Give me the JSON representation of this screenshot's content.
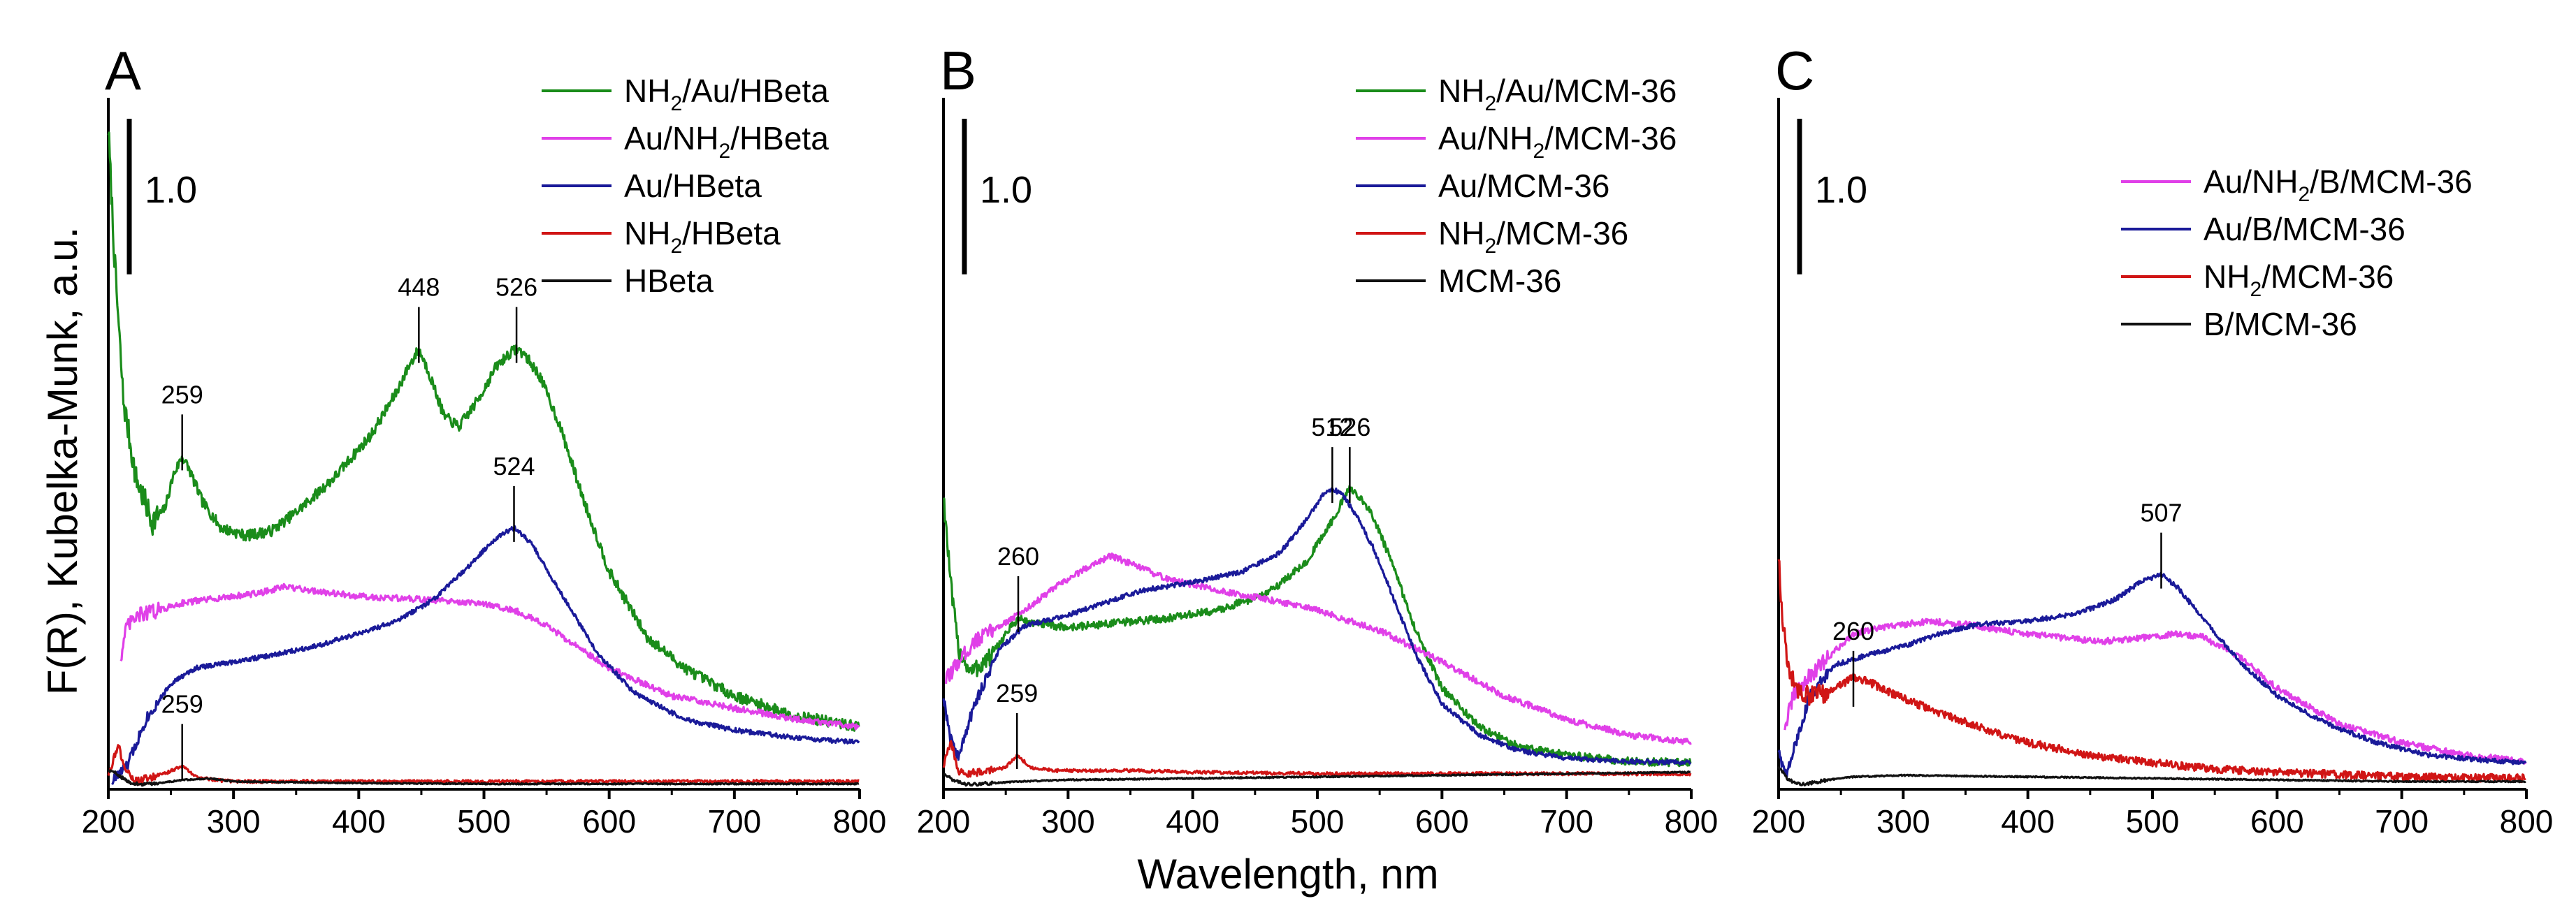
{
  "figure": {
    "xlabel": "Wavelength, nm",
    "ylabel": "F(R), Kubelka-Munk, a.u."
  },
  "colors": {
    "green": "#1a8c1a",
    "magenta": "#e040e8",
    "navy": "#1a1a99",
    "red": "#d01515",
    "black": "#111111"
  },
  "chart_data": [
    {
      "type": "line",
      "panel_label": "A",
      "xlim": [
        200,
        800
      ],
      "xticks": [
        200,
        300,
        400,
        500,
        600,
        700,
        800
      ],
      "ylim": [
        0,
        4.4
      ],
      "scale_bar": {
        "label": "1.0",
        "value": 1.0
      },
      "legend": [
        {
          "pre": "NH",
          "sub": "2",
          "post": "/Au/HBeta",
          "series": 0
        },
        {
          "pre": "Au/NH",
          "sub": "2",
          "post": "/HBeta",
          "series": 1
        },
        {
          "pre": "Au/HBeta",
          "sub": "",
          "post": "",
          "series": 2
        },
        {
          "pre": "NH",
          "sub": "2",
          "post": "/HBeta",
          "series": 3
        },
        {
          "pre": "HBeta",
          "sub": "",
          "post": "",
          "series": 4
        }
      ],
      "series": [
        {
          "color": "green",
          "noise": 0.035,
          "x": [
            200,
            205,
            212,
            222,
            235,
            245,
            252,
            259,
            265,
            275,
            290,
            310,
            330,
            350,
            380,
            410,
            430,
            440,
            448,
            456,
            468,
            480,
            495,
            510,
            520,
            526,
            532,
            545,
            560,
            580,
            600,
            630,
            660,
            700,
            750,
            800
          ],
          "y": [
            4.25,
            3.4,
            2.5,
            2.0,
            1.72,
            1.8,
            2.02,
            2.14,
            2.05,
            1.85,
            1.68,
            1.63,
            1.66,
            1.78,
            2.0,
            2.28,
            2.55,
            2.72,
            2.83,
            2.68,
            2.4,
            2.33,
            2.5,
            2.72,
            2.8,
            2.83,
            2.8,
            2.65,
            2.35,
            1.85,
            1.4,
            0.98,
            0.78,
            0.6,
            0.47,
            0.4
          ]
        },
        {
          "color": "magenta",
          "noise": 0.02,
          "x": [
            210,
            215,
            225,
            240,
            260,
            290,
            320,
            340,
            360,
            380,
            400,
            450,
            500,
            525,
            550,
            600,
            650,
            700,
            750,
            800
          ],
          "y": [
            0.85,
            1.05,
            1.12,
            1.15,
            1.2,
            1.23,
            1.26,
            1.3,
            1.28,
            1.26,
            1.24,
            1.22,
            1.19,
            1.15,
            1.05,
            0.78,
            0.6,
            0.52,
            0.45,
            0.4
          ]
        },
        {
          "color": "navy",
          "noise": 0.015,
          "x": [
            203,
            215,
            230,
            250,
            270,
            300,
            330,
            370,
            400,
            430,
            460,
            490,
            510,
            524,
            538,
            560,
            590,
            620,
            660,
            700,
            750,
            800
          ],
          "y": [
            0.05,
            0.15,
            0.45,
            0.68,
            0.78,
            0.82,
            0.86,
            0.93,
            1.0,
            1.08,
            1.22,
            1.45,
            1.62,
            1.68,
            1.58,
            1.28,
            0.88,
            0.62,
            0.45,
            0.38,
            0.33,
            0.3
          ]
        },
        {
          "color": "red",
          "noise": 0.01,
          "x": [
            200,
            208,
            214,
            222,
            232,
            245,
            259,
            270,
            285,
            300,
            400,
            500,
            600,
            700,
            800
          ],
          "y": [
            0.1,
            0.28,
            0.12,
            0.05,
            0.07,
            0.1,
            0.15,
            0.08,
            0.06,
            0.05,
            0.05,
            0.05,
            0.05,
            0.05,
            0.05
          ]
        },
        {
          "color": "black",
          "noise": 0.004,
          "x": [
            200,
            207,
            215,
            225,
            240,
            260,
            280,
            300,
            400,
            500,
            600,
            700,
            800
          ],
          "y": [
            0.12,
            0.1,
            0.05,
            0.03,
            0.04,
            0.06,
            0.07,
            0.05,
            0.04,
            0.035,
            0.035,
            0.035,
            0.035
          ]
        }
      ],
      "annotations": [
        {
          "label": "448",
          "x": 448,
          "y": 2.83
        },
        {
          "label": "526",
          "x": 526,
          "y": 2.83
        },
        {
          "label": "259",
          "x": 259,
          "y": 2.14
        },
        {
          "label": "524",
          "x": 524,
          "y": 1.68
        },
        {
          "label": "259",
          "x": 259,
          "y": 0.15
        }
      ]
    },
    {
      "type": "line",
      "panel_label": "B",
      "xlim": [
        200,
        800
      ],
      "xticks": [
        200,
        300,
        400,
        500,
        600,
        700,
        800
      ],
      "ylim": [
        0,
        4.4
      ],
      "scale_bar": {
        "label": "1.0",
        "value": 1.0
      },
      "legend": [
        {
          "pre": "NH",
          "sub": "2",
          "post": "/Au/MCM-36",
          "series": 0
        },
        {
          "pre": "Au/NH",
          "sub": "2",
          "post": "/MCM-36",
          "series": 1
        },
        {
          "pre": "Au/MCM-36",
          "sub": "",
          "post": "",
          "series": 2
        },
        {
          "pre": "NH",
          "sub": "2",
          "post": "/MCM-36",
          "series": 3
        },
        {
          "pre": "MCM-36",
          "sub": "",
          "post": "",
          "series": 4
        }
      ],
      "series": [
        {
          "color": "green",
          "noise": 0.025,
          "x": [
            200,
            206,
            212,
            222,
            238,
            250,
            260,
            270,
            300,
            340,
            380,
            420,
            460,
            490,
            510,
            520,
            526,
            532,
            545,
            560,
            580,
            600,
            630,
            660,
            700,
            750,
            800
          ],
          "y": [
            1.9,
            1.3,
            0.9,
            0.75,
            0.85,
            1.0,
            1.1,
            1.07,
            1.04,
            1.07,
            1.1,
            1.15,
            1.26,
            1.45,
            1.7,
            1.85,
            1.93,
            1.9,
            1.75,
            1.45,
            1.0,
            0.65,
            0.4,
            0.28,
            0.22,
            0.18,
            0.17
          ]
        },
        {
          "color": "magenta",
          "noise": 0.02,
          "x": [
            202,
            210,
            225,
            245,
            265,
            290,
            320,
            335,
            350,
            380,
            420,
            460,
            500,
            550,
            600,
            650,
            700,
            750,
            800
          ],
          "y": [
            0.7,
            0.8,
            0.95,
            1.05,
            1.15,
            1.3,
            1.45,
            1.5,
            1.45,
            1.35,
            1.28,
            1.22,
            1.15,
            1.02,
            0.82,
            0.6,
            0.45,
            0.35,
            0.3
          ]
        },
        {
          "color": "navy",
          "noise": 0.015,
          "x": [
            200,
            205,
            212,
            225,
            245,
            265,
            280,
            300,
            330,
            360,
            400,
            440,
            470,
            490,
            505,
            512,
            520,
            532,
            545,
            560,
            580,
            600,
            630,
            660,
            700,
            750,
            800
          ],
          "y": [
            0.6,
            0.35,
            0.2,
            0.55,
            0.9,
            1.05,
            1.08,
            1.12,
            1.2,
            1.28,
            1.33,
            1.4,
            1.52,
            1.72,
            1.9,
            1.93,
            1.9,
            1.75,
            1.55,
            1.25,
            0.85,
            0.55,
            0.35,
            0.25,
            0.2,
            0.18,
            0.17
          ]
        },
        {
          "color": "red",
          "noise": 0.01,
          "x": [
            200,
            206,
            212,
            220,
            235,
            250,
            259,
            270,
            290,
            350,
            400,
            500,
            600,
            700,
            800
          ],
          "y": [
            0.15,
            0.3,
            0.12,
            0.1,
            0.12,
            0.14,
            0.22,
            0.14,
            0.12,
            0.12,
            0.11,
            0.1,
            0.1,
            0.1,
            0.1
          ]
        },
        {
          "color": "black",
          "noise": 0.004,
          "x": [
            200,
            210,
            220,
            240,
            260,
            300,
            400,
            500,
            600,
            700,
            800
          ],
          "y": [
            0.1,
            0.05,
            0.03,
            0.04,
            0.05,
            0.06,
            0.07,
            0.08,
            0.09,
            0.1,
            0.11
          ]
        }
      ],
      "annotations": [
        {
          "label": "512",
          "x": 512,
          "y": 1.93
        },
        {
          "label": "526",
          "x": 526,
          "y": 1.93
        },
        {
          "label": "260",
          "x": 260,
          "y": 1.1
        },
        {
          "label": "259",
          "x": 259,
          "y": 0.22
        }
      ]
    },
    {
      "type": "line",
      "panel_label": "C",
      "xlim": [
        200,
        800
      ],
      "xticks": [
        200,
        300,
        400,
        500,
        600,
        700,
        800
      ],
      "ylim": [
        0,
        4.4
      ],
      "scale_bar": {
        "label": "1.0",
        "value": 1.0
      },
      "legend": [
        {
          "pre": "Au/NH",
          "sub": "2",
          "post": "/B/MCM-36",
          "series": 0
        },
        {
          "pre": "Au/B/MCM-36",
          "sub": "",
          "post": "",
          "series": 1
        },
        {
          "pre": "NH",
          "sub": "2",
          "post": "/MCM-36",
          "series": 2
        },
        {
          "pre": "B/MCM-36",
          "sub": "",
          "post": "",
          "series": 3
        }
      ],
      "series": [
        {
          "color": "magenta",
          "noise": 0.02,
          "x": [
            205,
            212,
            222,
            240,
            260,
            290,
            320,
            350,
            380,
            420,
            460,
            500,
            520,
            540,
            570,
            600,
            650,
            700,
            750,
            800
          ],
          "y": [
            0.4,
            0.6,
            0.7,
            0.85,
            1.0,
            1.05,
            1.08,
            1.06,
            1.02,
            0.98,
            0.95,
            0.98,
            1.0,
            0.98,
            0.85,
            0.65,
            0.42,
            0.3,
            0.22,
            0.18
          ]
        },
        {
          "color": "navy",
          "noise": 0.015,
          "x": [
            200,
            206,
            214,
            225,
            245,
            270,
            300,
            330,
            360,
            400,
            440,
            470,
            490,
            507,
            520,
            540,
            570,
            600,
            640,
            680,
            720,
            760,
            800
          ],
          "y": [
            0.25,
            0.08,
            0.3,
            0.6,
            0.8,
            0.86,
            0.92,
            1.0,
            1.06,
            1.08,
            1.13,
            1.22,
            1.33,
            1.38,
            1.3,
            1.1,
            0.82,
            0.6,
            0.42,
            0.3,
            0.22,
            0.19,
            0.17
          ]
        },
        {
          "color": "red",
          "noise": 0.025,
          "x": [
            200,
            203,
            208,
            215,
            225,
            240,
            260,
            270,
            290,
            320,
            360,
            400,
            450,
            500,
            550,
            600,
            700,
            800
          ],
          "y": [
            1.5,
            1.1,
            0.75,
            0.65,
            0.6,
            0.62,
            0.72,
            0.7,
            0.62,
            0.52,
            0.4,
            0.3,
            0.22,
            0.17,
            0.13,
            0.11,
            0.08,
            0.07
          ]
        },
        {
          "color": "black",
          "noise": 0.004,
          "x": [
            200,
            208,
            218,
            240,
            260,
            300,
            400,
            500,
            600,
            700,
            800
          ],
          "y": [
            0.15,
            0.06,
            0.03,
            0.06,
            0.08,
            0.09,
            0.08,
            0.07,
            0.06,
            0.05,
            0.05
          ]
        }
      ],
      "annotations": [
        {
          "label": "507",
          "x": 507,
          "y": 1.38
        },
        {
          "label": "260",
          "x": 260,
          "y": 0.62
        }
      ]
    }
  ]
}
